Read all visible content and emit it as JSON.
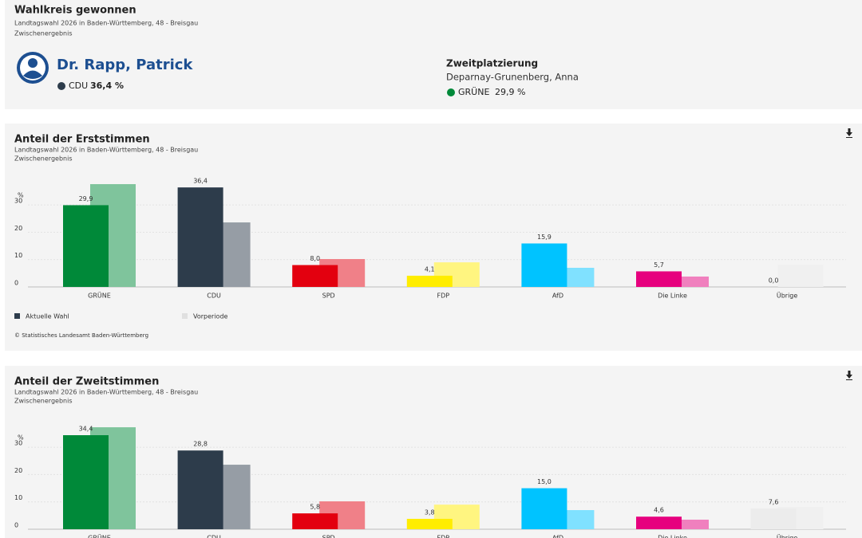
{
  "header": {
    "title": "Wahlkreis gewonnen",
    "subtitle": "Landtagswahl 2026 in Baden-Württemberg, 48 - Breisgau",
    "note": "Zwischenergebnis",
    "winner": {
      "name": "Dr. Rapp, Patrick",
      "party": "CDU",
      "share": "36,4 %",
      "color": "#2d3c4b"
    },
    "second": {
      "heading": "Zweitplatzierung",
      "name": "Deparnay-Grunenberg, Anna",
      "party": "GRÜNE",
      "share": "29,9 %",
      "color": "#008939"
    }
  },
  "chart_data": [
    {
      "type": "bar",
      "title": "Anteil der Erststimmen",
      "subtitle": "Landtagswahl 2026 in Baden-Württemberg, 48 - Breisgau",
      "note": "Zwischenergebnis",
      "y_unit": "%",
      "categories": [
        "GRÜNE",
        "CDU",
        "SPD",
        "FDP",
        "AfD",
        "Die Linke",
        "Übrige"
      ],
      "series": [
        {
          "name": "Aktuelle Wahl",
          "color": "#2d3c4b",
          "colors": [
            "#008939",
            "#2d3c4b",
            "#e3000f",
            "#ffed00",
            "#00c3ff",
            "#e6007e",
            "#f0f0f0"
          ],
          "values": [
            29.9,
            36.4,
            8.0,
            4.1,
            15.9,
            5.7,
            0.0
          ],
          "value_labels": [
            "29,9",
            "36,4",
            "8,0",
            "4,1",
            "15,9",
            "5,7",
            "0,0"
          ]
        },
        {
          "name": "Vorperiode",
          "color": "#e0e0e0",
          "colors": [
            "#7fc49c",
            "#969da5",
            "#f08088",
            "#fff580",
            "#80e1ff",
            "#f080be",
            "#f0f0f0"
          ],
          "values": [
            37.6,
            23.6,
            10.2,
            9.0,
            7.0,
            3.8,
            8.2
          ]
        }
      ],
      "ylim": [
        0,
        40
      ],
      "yticks": [
        0,
        10,
        20,
        30
      ],
      "grid": true,
      "legend": "bottom-left",
      "source": "© Statistisches Landesamt Baden-Württemberg"
    },
    {
      "type": "bar",
      "title": "Anteil der Zweitstimmen",
      "subtitle": "Landtagswahl 2026 in Baden-Württemberg, 48 - Breisgau",
      "note": "Zwischenergebnis",
      "y_unit": "%",
      "categories": [
        "GRÜNE",
        "CDU",
        "SPD",
        "FDP",
        "AfD",
        "Die Linke",
        "Übrige"
      ],
      "series": [
        {
          "colors": [
            "#008939",
            "#2d3c4b",
            "#e3000f",
            "#ffed00",
            "#00c3ff",
            "#e6007e",
            "#ececec"
          ],
          "values": [
            34.4,
            28.8,
            5.8,
            3.8,
            15.0,
            4.6,
            7.6
          ],
          "value_labels": [
            "34,4",
            "28,8",
            "5,8",
            "3,8",
            "15,0",
            "4,6",
            "7,6"
          ]
        },
        {
          "colors": [
            "#7fc49c",
            "#969da5",
            "#f08088",
            "#fff580",
            "#80e1ff",
            "#f080be",
            "#f0f0f0"
          ],
          "values": [
            37.3,
            23.6,
            10.2,
            9.0,
            7.0,
            3.5,
            8.2
          ]
        }
      ],
      "ylim": [
        0,
        40
      ],
      "yticks": [
        0,
        10,
        20,
        30
      ],
      "grid": true
    }
  ]
}
